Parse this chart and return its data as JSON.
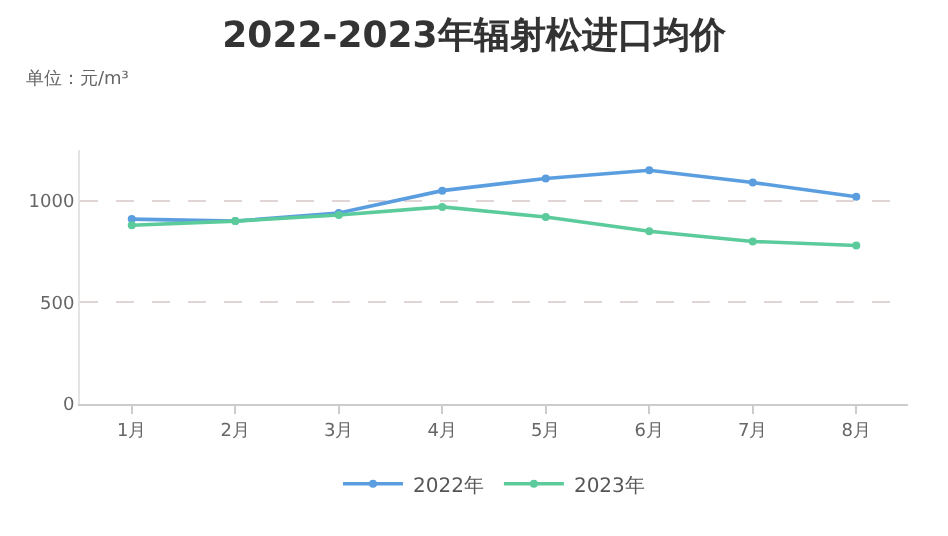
{
  "chart_data": {
    "type": "line",
    "title": "2022-2023年辐射松进口均价",
    "subtitle": "单位：元/m³",
    "categories": [
      "1月",
      "2月",
      "3月",
      "4月",
      "5月",
      "6月",
      "7月",
      "8月"
    ],
    "series": [
      {
        "name": "2022年",
        "color": "#5b9ee0",
        "values": [
          910,
          900,
          940,
          1050,
          1110,
          1150,
          1090,
          1020
        ]
      },
      {
        "name": "2023年",
        "color": "#5ccb9c",
        "values": [
          880,
          900,
          930,
          970,
          920,
          850,
          800,
          780
        ]
      }
    ],
    "ylim": [
      0,
      1250
    ],
    "yticks": [
      0,
      500,
      1000
    ],
    "grid": "y",
    "legend": "bottom",
    "marker": "circle",
    "line_style": "solid"
  }
}
